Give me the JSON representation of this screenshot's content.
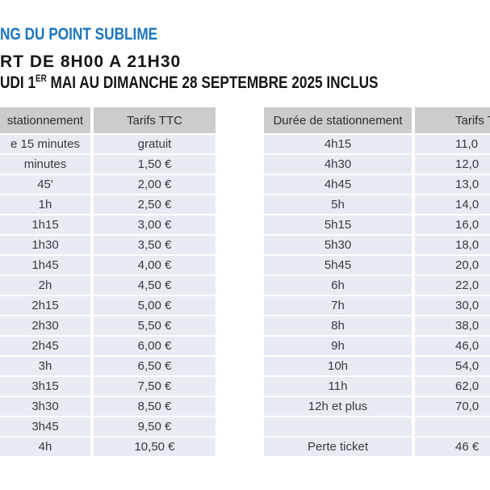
{
  "page": {
    "title": "NG DU POINT SUBLIME",
    "line_hours": "RT DE 8H00 A 21H30",
    "line_period_prefix": "UDI 1",
    "line_period_sup": "ER",
    "line_period_rest": " MAI AU DIMANCHE 28 SEPTEMBRE 2025 INCLUS"
  },
  "colors": {
    "title_blue": "#1c76bd",
    "header_gray": "#cdcccd",
    "row_lavender": "#e9ebf4"
  },
  "tables": [
    {
      "headers": [
        "stationnement",
        "Tarifs TTC"
      ],
      "rows": [
        [
          "e 15 minutes",
          "gratuit"
        ],
        [
          "minutes",
          "1,50 €"
        ],
        [
          "45'",
          "2,00 €"
        ],
        [
          "1h",
          "2,50 €"
        ],
        [
          "1h15",
          "3,00 €"
        ],
        [
          "1h30",
          "3,50 €"
        ],
        [
          "1h45",
          "4,00 €"
        ],
        [
          "2h",
          "4,50 €"
        ],
        [
          "2h15",
          "5,00 €"
        ],
        [
          "2h30",
          "5,50 €"
        ],
        [
          "2h45",
          "6,00 €"
        ],
        [
          "3h",
          "6,50 €"
        ],
        [
          "3h15",
          "7,50 €"
        ],
        [
          "3h30",
          "8,50 €"
        ],
        [
          "3h45",
          "9,50 €"
        ],
        [
          "4h",
          "10,50 €"
        ]
      ]
    },
    {
      "headers": [
        "Durée de stationnement",
        "Tarifs T"
      ],
      "rows": [
        [
          "4h15",
          "11,0"
        ],
        [
          "4h30",
          "12,0"
        ],
        [
          "4h45",
          "13,0"
        ],
        [
          "5h",
          "14,0"
        ],
        [
          "5h15",
          "16,0"
        ],
        [
          "5h30",
          "18,0"
        ],
        [
          "5h45",
          "20,0"
        ],
        [
          "6h",
          "22,0"
        ],
        [
          "7h",
          "30,0"
        ],
        [
          "8h",
          "38,0"
        ],
        [
          "9h",
          "46,0"
        ],
        [
          "10h",
          "54,0"
        ],
        [
          "11h",
          "62,0"
        ],
        [
          "12h et plus",
          "70,0"
        ],
        [
          "",
          ""
        ],
        [
          "Perte ticket",
          "46 €"
        ]
      ]
    }
  ]
}
